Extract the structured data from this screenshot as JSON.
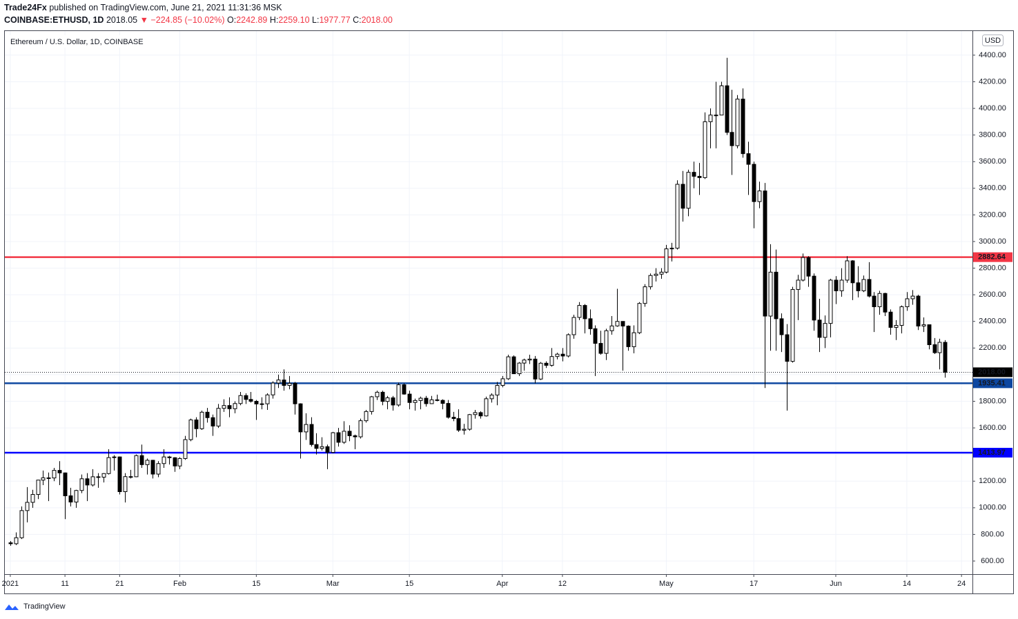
{
  "header": {
    "author": "Trade24Fx",
    "published": "published on TradingView.com, June 21, 2021 11:31:36 MSK",
    "symbol": "COINBASE:ETHUSD, 1D",
    "last": "2018.05",
    "change": "▼ −224.85 (−10.02%)",
    "ohlc": [
      {
        "label": "O:",
        "value": "2242.89"
      },
      {
        "label": "H:",
        "value": "2259.10"
      },
      {
        "label": "L:",
        "value": "1977.77"
      },
      {
        "label": "C:",
        "value": "2018.00"
      }
    ]
  },
  "footer": {
    "logo": "TradingView"
  },
  "chart_data": {
    "type": "candlestick",
    "title": "Ethereum / U.S. Dollar, 1D, COINBASE",
    "currency": "USD",
    "up_color": "#ffffff",
    "down_color": "#000000",
    "grid": true,
    "xlim": [
      "2020-12-31",
      "2021-06-26"
    ],
    "xticks": [
      {
        "value": "2021-01-01",
        "label": "2021"
      },
      {
        "value": "2021-01-11",
        "label": "11"
      },
      {
        "value": "2021-01-21",
        "label": "21"
      },
      {
        "value": "2021-02-01",
        "label": "Feb"
      },
      {
        "value": "2021-02-15",
        "label": "15"
      },
      {
        "value": "2021-03-01",
        "label": "Mar"
      },
      {
        "value": "2021-03-15",
        "label": "15"
      },
      {
        "value": "2021-04-01",
        "label": "Apr"
      },
      {
        "value": "2021-04-12",
        "label": "12"
      },
      {
        "value": "2021-05-01",
        "label": "May"
      },
      {
        "value": "2021-05-17",
        "label": "17"
      },
      {
        "value": "2021-06-01",
        "label": "Jun"
      },
      {
        "value": "2021-06-14",
        "label": "14"
      },
      {
        "value": "2021-06-24",
        "label": "24"
      }
    ],
    "ylim": [
      501.5,
      4581
    ],
    "yticks": [
      {
        "value": 600,
        "label": "600.00"
      },
      {
        "value": 800,
        "label": "800.00"
      },
      {
        "value": 1000,
        "label": "1000.00"
      },
      {
        "value": 1200,
        "label": "1200.00"
      },
      {
        "value": 1400,
        "label": "1400.00"
      },
      {
        "value": 1600,
        "label": "1600.00"
      },
      {
        "value": 1800,
        "label": "1800.00"
      },
      {
        "value": 2000,
        "label": "2000.00"
      },
      {
        "value": 2200,
        "label": "2200.00"
      },
      {
        "value": 2400,
        "label": "2400.00"
      },
      {
        "value": 2600,
        "label": "2600.00"
      },
      {
        "value": 2800,
        "label": "2800.00"
      },
      {
        "value": 3000,
        "label": "3000.00"
      },
      {
        "value": 3200,
        "label": "3200.00"
      },
      {
        "value": 3400,
        "label": "3400.00"
      },
      {
        "value": 3600,
        "label": "3600.00"
      },
      {
        "value": 3800,
        "label": "3800.00"
      },
      {
        "value": 4000,
        "label": "4000.00"
      },
      {
        "value": 4200,
        "label": "4200.00"
      },
      {
        "value": 4400,
        "label": "4400.00"
      }
    ],
    "hlines": [
      {
        "value": 2882.64,
        "color": "#f23645"
      },
      {
        "value": 1935.41,
        "color": "#0d47a1"
      },
      {
        "value": 1413.97,
        "color": "#0000ff"
      }
    ],
    "last_price": {
      "value": 2018,
      "label": "2018.00"
    },
    "x": [
      "2021-01-01",
      "2021-01-02",
      "2021-01-03",
      "2021-01-04",
      "2021-01-05",
      "2021-01-06",
      "2021-01-07",
      "2021-01-08",
      "2021-01-09",
      "2021-01-10",
      "2021-01-11",
      "2021-01-12",
      "2021-01-13",
      "2021-01-14",
      "2021-01-15",
      "2021-01-16",
      "2021-01-17",
      "2021-01-18",
      "2021-01-19",
      "2021-01-20",
      "2021-01-21",
      "2021-01-22",
      "2021-01-23",
      "2021-01-24",
      "2021-01-25",
      "2021-01-26",
      "2021-01-27",
      "2021-01-28",
      "2021-01-29",
      "2021-01-30",
      "2021-01-31",
      "2021-02-01",
      "2021-02-02",
      "2021-02-03",
      "2021-02-04",
      "2021-02-05",
      "2021-02-06",
      "2021-02-07",
      "2021-02-08",
      "2021-02-09",
      "2021-02-10",
      "2021-02-11",
      "2021-02-12",
      "2021-02-13",
      "2021-02-14",
      "2021-02-15",
      "2021-02-16",
      "2021-02-17",
      "2021-02-18",
      "2021-02-19",
      "2021-02-20",
      "2021-02-21",
      "2021-02-22",
      "2021-02-23",
      "2021-02-24",
      "2021-02-25",
      "2021-02-26",
      "2021-02-27",
      "2021-02-28",
      "2021-03-01",
      "2021-03-02",
      "2021-03-03",
      "2021-03-04",
      "2021-03-05",
      "2021-03-06",
      "2021-03-07",
      "2021-03-08",
      "2021-03-09",
      "2021-03-10",
      "2021-03-11",
      "2021-03-12",
      "2021-03-13",
      "2021-03-14",
      "2021-03-15",
      "2021-03-16",
      "2021-03-17",
      "2021-03-18",
      "2021-03-19",
      "2021-03-20",
      "2021-03-21",
      "2021-03-22",
      "2021-03-23",
      "2021-03-24",
      "2021-03-25",
      "2021-03-26",
      "2021-03-27",
      "2021-03-28",
      "2021-03-29",
      "2021-03-30",
      "2021-03-31",
      "2021-04-01",
      "2021-04-02",
      "2021-04-03",
      "2021-04-04",
      "2021-04-05",
      "2021-04-06",
      "2021-04-07",
      "2021-04-08",
      "2021-04-09",
      "2021-04-10",
      "2021-04-11",
      "2021-04-12",
      "2021-04-13",
      "2021-04-14",
      "2021-04-15",
      "2021-04-16",
      "2021-04-17",
      "2021-04-18",
      "2021-04-19",
      "2021-04-20",
      "2021-04-21",
      "2021-04-22",
      "2021-04-23",
      "2021-04-24",
      "2021-04-25",
      "2021-04-26",
      "2021-04-27",
      "2021-04-28",
      "2021-04-29",
      "2021-04-30",
      "2021-05-01",
      "2021-05-02",
      "2021-05-03",
      "2021-05-04",
      "2021-05-05",
      "2021-05-06",
      "2021-05-07",
      "2021-05-08",
      "2021-05-09",
      "2021-05-10",
      "2021-05-11",
      "2021-05-12",
      "2021-05-13",
      "2021-05-14",
      "2021-05-15",
      "2021-05-16",
      "2021-05-17",
      "2021-05-18",
      "2021-05-19",
      "2021-05-20",
      "2021-05-21",
      "2021-05-22",
      "2021-05-23",
      "2021-05-24",
      "2021-05-25",
      "2021-05-26",
      "2021-05-27",
      "2021-05-28",
      "2021-05-29",
      "2021-05-30",
      "2021-05-31",
      "2021-06-01",
      "2021-06-02",
      "2021-06-03",
      "2021-06-04",
      "2021-06-05",
      "2021-06-06",
      "2021-06-07",
      "2021-06-08",
      "2021-06-09",
      "2021-06-10",
      "2021-06-11",
      "2021-06-12",
      "2021-06-13",
      "2021-06-14",
      "2021-06-15",
      "2021-06-16",
      "2021-06-17",
      "2021-06-18",
      "2021-06-19",
      "2021-06-20",
      "2021-06-21"
    ],
    "open": [
      737,
      730,
      775,
      979,
      1041,
      1100,
      1208,
      1225,
      1224,
      1281,
      1262,
      1090,
      1043,
      1130,
      1218,
      1171,
      1233,
      1230,
      1257,
      1377,
      1382,
      1121,
      1234,
      1233,
      1392,
      1324,
      1357,
      1253,
      1332,
      1382,
      1376,
      1314,
      1370,
      1512,
      1660,
      1594,
      1718,
      1677,
      1614,
      1747,
      1768,
      1744,
      1783,
      1843,
      1814,
      1800,
      1780,
      1781,
      1848,
      1937,
      1960,
      1919,
      1935,
      1781,
      1570,
      1626,
      1475,
      1446,
      1459,
      1416,
      1564,
      1492,
      1575,
      1541,
      1533,
      1654,
      1723,
      1834,
      1868,
      1799,
      1826,
      1772,
      1924,
      1854,
      1791,
      1806,
      1823,
      1782,
      1811,
      1807,
      1784,
      1680,
      1670,
      1583,
      1590,
      1700,
      1715,
      1690,
      1819,
      1847,
      1919,
      1969,
      2134,
      2007,
      2087,
      2110,
      2117,
      1967,
      2086,
      2070,
      2136,
      2154,
      2140,
      2300,
      2430,
      2520,
      2420,
      2345,
      2235,
      2160,
      2330,
      2366,
      2400,
      2365,
      2210,
      2315,
      2535,
      2660,
      2745,
      2755,
      2770,
      2945,
      2950,
      3430,
      3250,
      3520,
      3490,
      3480,
      3900,
      3950,
      3950,
      4170,
      3820,
      3720,
      4070,
      3660,
      3580,
      3300,
      3380,
      2440,
      2770,
      2420,
      2300,
      2100,
      2640,
      2710,
      2880,
      2740,
      2410,
      2280,
      2385,
      2710,
      2630,
      2710,
      2855,
      2690,
      2630,
      2715,
      2590,
      2510,
      2610,
      2470,
      2355,
      2370,
      2510,
      2570,
      2590,
      2365,
      2375,
      2225,
      2165,
      2242.89
    ],
    "high": [
      750,
      815,
      1010,
      1155,
      1135,
      1210,
      1280,
      1265,
      1300,
      1350,
      1265,
      1150,
      1135,
      1250,
      1260,
      1290,
      1260,
      1260,
      1440,
      1395,
      1385,
      1260,
      1285,
      1400,
      1475,
      1370,
      1360,
      1350,
      1440,
      1390,
      1380,
      1380,
      1540,
      1670,
      1680,
      1730,
      1750,
      1700,
      1780,
      1815,
      1830,
      1800,
      1870,
      1860,
      1870,
      1810,
      1830,
      1860,
      1950,
      2000,
      2040,
      1990,
      1945,
      1785,
      1710,
      1680,
      1560,
      1530,
      1475,
      1570,
      1600,
      1650,
      1620,
      1550,
      1670,
      1735,
      1840,
      1880,
      1880,
      1840,
      1840,
      1940,
      1935,
      1880,
      1820,
      1835,
      1840,
      1840,
      1850,
      1815,
      1810,
      1720,
      1740,
      1630,
      1705,
      1735,
      1725,
      1835,
      1860,
      1945,
      1990,
      2150,
      2145,
      2095,
      2120,
      2150,
      2140,
      2095,
      2100,
      2200,
      2165,
      2200,
      2310,
      2450,
      2545,
      2530,
      2490,
      2370,
      2330,
      2345,
      2440,
      2645,
      2400,
      2370,
      2370,
      2545,
      2680,
      2760,
      2800,
      2800,
      2975,
      2990,
      3460,
      3530,
      3540,
      3600,
      3590,
      3970,
      4000,
      4200,
      4200,
      4380,
      4140,
      4100,
      4150,
      3750,
      3600,
      3450,
      3440,
      2980,
      2940,
      2460,
      2380,
      2660,
      2750,
      2910,
      2890,
      2760,
      2570,
      2445,
      2720,
      2740,
      2800,
      2890,
      2860,
      2815,
      2745,
      2845,
      2620,
      2630,
      2615,
      2490,
      2410,
      2520,
      2620,
      2635,
      2600,
      2430,
      2375,
      2275,
      2270,
      2259.1
    ],
    "low": [
      715,
      720,
      765,
      890,
      1000,
      1065,
      1170,
      1050,
      1200,
      1170,
      915,
      1010,
      1000,
      1110,
      1050,
      1160,
      1150,
      1190,
      1250,
      1280,
      1100,
      1040,
      1220,
      1230,
      1300,
      1250,
      1220,
      1230,
      1300,
      1325,
      1270,
      1290,
      1360,
      1500,
      1530,
      1585,
      1640,
      1540,
      1600,
      1720,
      1680,
      1710,
      1770,
      1780,
      1790,
      1660,
      1740,
      1735,
      1820,
      1900,
      1880,
      1890,
      1700,
      1370,
      1510,
      1460,
      1400,
      1430,
      1290,
      1410,
      1460,
      1480,
      1500,
      1440,
      1520,
      1640,
      1700,
      1810,
      1770,
      1740,
      1730,
      1760,
      1850,
      1740,
      1730,
      1740,
      1760,
      1780,
      1800,
      1740,
      1670,
      1650,
      1570,
      1550,
      1580,
      1670,
      1670,
      1685,
      1790,
      1770,
      1905,
      1960,
      2005,
      1990,
      2030,
      2080,
      1935,
      1960,
      2050,
      2060,
      2115,
      2100,
      2130,
      2270,
      2410,
      2310,
      2300,
      1990,
      2150,
      2110,
      2300,
      2360,
      2030,
      2180,
      2160,
      2305,
      2510,
      2640,
      2700,
      2720,
      2760,
      2850,
      2940,
      3150,
      3190,
      3400,
      3350,
      3470,
      3700,
      3700,
      3950,
      3800,
      3500,
      3700,
      3630,
      3350,
      3100,
      3250,
      1900,
      2180,
      2180,
      2170,
      1730,
      2090,
      2410,
      2700,
      2660,
      2330,
      2170,
      2200,
      2280,
      2530,
      2585,
      2690,
      2560,
      2580,
      2620,
      2580,
      2320,
      2450,
      2440,
      2300,
      2260,
      2310,
      2480,
      2525,
      2335,
      2320,
      2190,
      2155,
      2040,
      1977.77
    ],
    "close": [
      730,
      775,
      979,
      1041,
      1100,
      1208,
      1225,
      1224,
      1281,
      1262,
      1090,
      1043,
      1130,
      1218,
      1171,
      1233,
      1230,
      1257,
      1377,
      1382,
      1121,
      1234,
      1233,
      1392,
      1324,
      1357,
      1253,
      1332,
      1382,
      1376,
      1314,
      1370,
      1512,
      1660,
      1594,
      1718,
      1677,
      1614,
      1747,
      1768,
      1744,
      1783,
      1843,
      1814,
      1800,
      1780,
      1781,
      1848,
      1937,
      1960,
      1919,
      1935,
      1781,
      1570,
      1626,
      1475,
      1446,
      1459,
      1416,
      1564,
      1492,
      1575,
      1541,
      1533,
      1654,
      1723,
      1834,
      1868,
      1799,
      1826,
      1772,
      1924,
      1854,
      1791,
      1806,
      1823,
      1782,
      1811,
      1807,
      1784,
      1680,
      1670,
      1583,
      1590,
      1700,
      1715,
      1690,
      1819,
      1847,
      1919,
      1969,
      2134,
      2007,
      2087,
      2110,
      2117,
      1967,
      2086,
      2070,
      2136,
      2154,
      2140,
      2300,
      2430,
      2520,
      2420,
      2345,
      2235,
      2160,
      2330,
      2366,
      2400,
      2365,
      2210,
      2315,
      2535,
      2660,
      2745,
      2755,
      2770,
      2945,
      2950,
      3430,
      3250,
      3520,
      3490,
      3480,
      3900,
      3950,
      3950,
      4170,
      3820,
      3720,
      4070,
      3660,
      3580,
      3300,
      3380,
      2440,
      2770,
      2420,
      2300,
      2100,
      2640,
      2710,
      2880,
      2740,
      2410,
      2280,
      2385,
      2710,
      2630,
      2710,
      2855,
      2690,
      2630,
      2715,
      2590,
      2510,
      2610,
      2470,
      2355,
      2370,
      2510,
      2570,
      2590,
      2365,
      2375,
      2225,
      2165,
      2243,
      2018
    ]
  }
}
